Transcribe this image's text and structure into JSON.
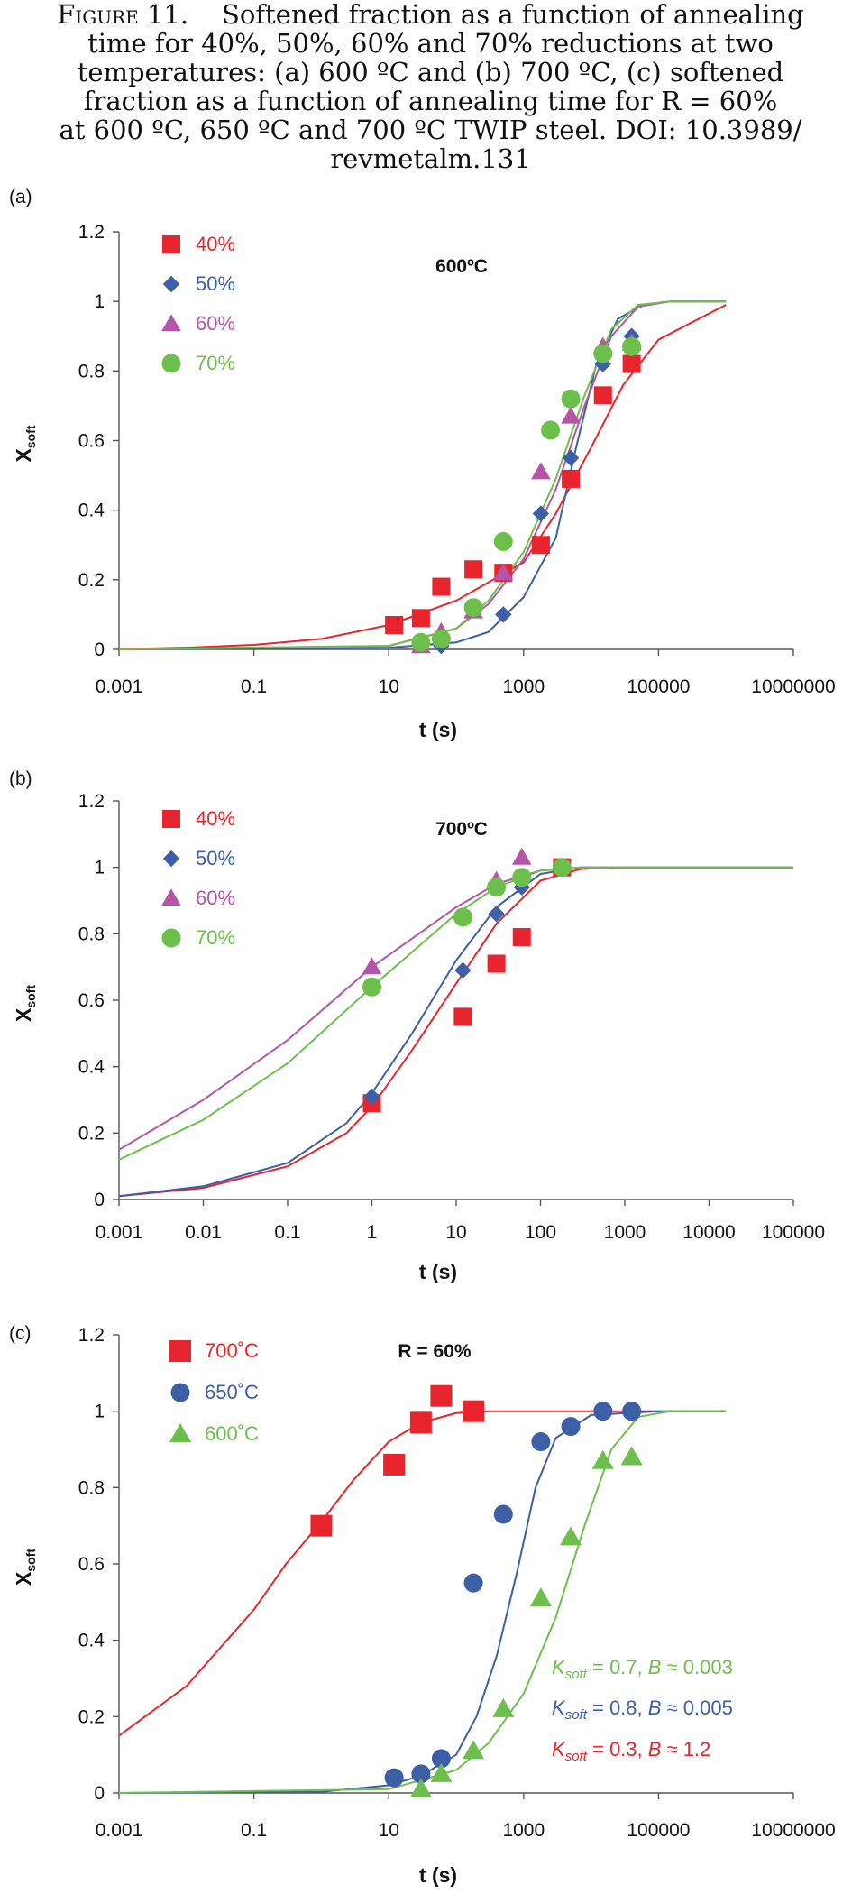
{
  "caption": {
    "lead": "Figure 11.",
    "lines": [
      "Softened fraction as a function of annealing",
      "time for 40%, 50%, 60% and 70% reductions at two",
      "temperatures: (a) 600 ºC and (b) 700 ºC, (c) softened",
      "fraction as a function of annealing time for R = 60%",
      "at 600 ºC, 650 ºC and 700 ºC TWIP steel.  DOI: 10.3989/",
      "revmetalm.131"
    ]
  },
  "chart_data": [
    {
      "panel_label": "(a)",
      "type": "scatter",
      "title": "600ºC",
      "xlabel": "t (s)",
      "ylabel": "X",
      "ylabel_sub": "soft",
      "xscale": "log",
      "xlim": [
        0.001,
        10000000
      ],
      "ylim": [
        0,
        1.2
      ],
      "xticks": [
        0.001,
        0.1,
        10,
        1000,
        100000,
        10000000
      ],
      "xticklabels": [
        "0.001",
        "0.1",
        "10",
        "1000",
        "100000",
        "10000000"
      ],
      "yticks": [
        0,
        0.2,
        0.4,
        0.6,
        0.8,
        1,
        1.2
      ],
      "yticklabels": [
        "0",
        "0.2",
        "0.4",
        "0.6",
        "0.8",
        "1",
        "1.2"
      ],
      "grid": false,
      "legend_position": "top-left",
      "series": [
        {
          "name": "40%",
          "marker": "square",
          "color": "#e8242c",
          "x": [
            12,
            30,
            60,
            180,
            500,
            1800,
            5000,
            15000,
            40000
          ],
          "y": [
            0.07,
            0.09,
            0.18,
            0.23,
            0.22,
            0.3,
            0.49,
            0.73,
            0.82
          ],
          "fit_x": [
            0.001,
            0.01,
            0.1,
            1,
            10,
            100,
            1000,
            3000,
            10000,
            30000,
            100000,
            1000000
          ],
          "fit_y": [
            0.001,
            0.005,
            0.013,
            0.03,
            0.07,
            0.14,
            0.25,
            0.39,
            0.58,
            0.76,
            0.89,
            0.99
          ]
        },
        {
          "name": "50%",
          "marker": "diamond",
          "color": "#3c5fa6",
          "x": [
            60,
            500,
            1800,
            5000,
            15000,
            40000
          ],
          "y": [
            0.01,
            0.1,
            0.39,
            0.55,
            0.82,
            0.9
          ],
          "fit_x": [
            0.001,
            10,
            100,
            300,
            1000,
            3000,
            6000,
            12000,
            25000,
            60000,
            150000,
            1000000
          ],
          "fit_y": [
            0,
            0.005,
            0.02,
            0.05,
            0.15,
            0.32,
            0.58,
            0.82,
            0.95,
            0.99,
            1,
            1
          ]
        },
        {
          "name": "60%",
          "marker": "triangle",
          "color": "#b555a8",
          "x": [
            30,
            60,
            180,
            500,
            1800,
            5000,
            15000,
            40000
          ],
          "y": [
            0.01,
            0.05,
            0.11,
            0.22,
            0.51,
            0.67,
            0.87,
            0.88
          ],
          "fit_x": [
            0.001,
            10,
            100,
            300,
            1000,
            3000,
            8000,
            20000,
            50000,
            150000,
            1000000
          ],
          "fit_y": [
            0,
            0.01,
            0.06,
            0.13,
            0.26,
            0.46,
            0.7,
            0.9,
            0.985,
            1,
            1
          ]
        },
        {
          "name": "70%",
          "marker": "circle",
          "color": "#6dbf4b",
          "x": [
            30,
            60,
            180,
            500,
            2500,
            5000,
            15000,
            40000
          ],
          "y": [
            0.02,
            0.03,
            0.12,
            0.31,
            0.63,
            0.72,
            0.85,
            0.87
          ],
          "fit_x": [
            0.001,
            10,
            100,
            300,
            1000,
            3000,
            8000,
            20000,
            50000,
            150000,
            1000000
          ],
          "fit_y": [
            0,
            0.01,
            0.06,
            0.14,
            0.28,
            0.49,
            0.73,
            0.92,
            0.99,
            1,
            1
          ]
        }
      ]
    },
    {
      "panel_label": "(b)",
      "type": "scatter",
      "title": "700ºC",
      "xlabel": "t (s)",
      "ylabel": "X",
      "ylabel_sub": "soft",
      "xscale": "log",
      "xlim": [
        0.001,
        100000
      ],
      "ylim": [
        0,
        1.2
      ],
      "xticks": [
        0.001,
        0.01,
        0.1,
        1,
        10,
        100,
        1000,
        10000,
        100000
      ],
      "xticklabels": [
        "0.001",
        "0.01",
        "0.1",
        "1",
        "10",
        "100",
        "1000",
        "10000",
        "100000"
      ],
      "yticks": [
        0,
        0.2,
        0.4,
        0.6,
        0.8,
        1,
        1.2
      ],
      "yticklabels": [
        "0",
        "0.2",
        "0.4",
        "0.6",
        "0.8",
        "1",
        "1.2"
      ],
      "grid": false,
      "legend_position": "top-left",
      "series": [
        {
          "name": "40%",
          "marker": "square",
          "color": "#e8242c",
          "x": [
            1,
            12,
            30,
            60,
            180
          ],
          "y": [
            0.29,
            0.55,
            0.71,
            0.79,
            1.0
          ],
          "fit_x": [
            0.001,
            0.01,
            0.1,
            0.5,
            1,
            3,
            10,
            30,
            100,
            300,
            1000,
            100000
          ],
          "fit_y": [
            0.01,
            0.035,
            0.1,
            0.2,
            0.28,
            0.45,
            0.65,
            0.83,
            0.96,
            0.995,
            1,
            1
          ]
        },
        {
          "name": "50%",
          "marker": "diamond",
          "color": "#3c5fa6",
          "x": [
            1,
            12,
            30,
            60
          ],
          "y": [
            0.31,
            0.69,
            0.86,
            0.94
          ],
          "fit_x": [
            0.001,
            0.01,
            0.1,
            0.5,
            1,
            3,
            10,
            30,
            100,
            300,
            1000,
            100000
          ],
          "fit_y": [
            0.01,
            0.04,
            0.11,
            0.23,
            0.32,
            0.5,
            0.72,
            0.88,
            0.98,
            1,
            1,
            1
          ]
        },
        {
          "name": "60%",
          "marker": "triangle",
          "color": "#b555a8",
          "x": [
            1,
            30,
            60
          ],
          "y": [
            0.7,
            0.96,
            1.03
          ],
          "fit_x": [
            0.001,
            0.01,
            0.1,
            1,
            10,
            30,
            100,
            300,
            1000,
            100000
          ],
          "fit_y": [
            0.15,
            0.3,
            0.48,
            0.7,
            0.88,
            0.95,
            0.99,
            1,
            1,
            1
          ]
        },
        {
          "name": "70%",
          "marker": "circle",
          "color": "#6dbf4b",
          "x": [
            1,
            12,
            30,
            60,
            180
          ],
          "y": [
            0.64,
            0.85,
            0.94,
            0.97,
            1.0
          ],
          "fit_x": [
            0.001,
            0.01,
            0.1,
            1,
            10,
            30,
            100,
            300,
            1000,
            100000
          ],
          "fit_y": [
            0.12,
            0.24,
            0.41,
            0.64,
            0.86,
            0.94,
            0.99,
            1,
            1,
            1
          ]
        }
      ]
    },
    {
      "panel_label": "(c)",
      "type": "scatter",
      "title": "R = 60%",
      "xlabel": "t (s)",
      "ylabel": "X",
      "ylabel_sub": "soft",
      "xscale": "log",
      "xlim": [
        0.001,
        10000000
      ],
      "ylim": [
        0,
        1.2
      ],
      "xticks": [
        0.001,
        0.1,
        10,
        1000,
        100000,
        10000000
      ],
      "xticklabels": [
        "0.001",
        "0.1",
        "10",
        "1000",
        "100000",
        "10000000"
      ],
      "yticks": [
        0,
        0.2,
        0.4,
        0.6,
        0.8,
        1,
        1.2
      ],
      "yticklabels": [
        "0",
        "0.2",
        "0.4",
        "0.6",
        "0.8",
        "1",
        "1.2"
      ],
      "grid": false,
      "legend_position": "top-left",
      "series": [
        {
          "name": "700˚C",
          "marker": "square",
          "color": "#e8242c",
          "x": [
            1,
            12,
            30,
            60,
            180
          ],
          "y": [
            0.7,
            0.86,
            0.97,
            1.04,
            1.0
          ],
          "fit_x": [
            0.001,
            0.01,
            0.1,
            0.3,
            1,
            3,
            10,
            30,
            100,
            300,
            1000,
            100000,
            1000000
          ],
          "fit_y": [
            0.15,
            0.28,
            0.48,
            0.6,
            0.71,
            0.82,
            0.92,
            0.97,
            0.995,
            1,
            1,
            1,
            1
          ]
        },
        {
          "name": "650˚C",
          "marker": "circle",
          "color": "#3c5fa6",
          "x": [
            12,
            30,
            60,
            180,
            500,
            1800,
            5000,
            15000,
            40000
          ],
          "y": [
            0.04,
            0.05,
            0.09,
            0.55,
            0.73,
            0.92,
            0.96,
            1.0,
            1.0
          ],
          "fit_x": [
            0.001,
            1,
            10,
            30,
            100,
            200,
            400,
            800,
            1500,
            3000,
            10000,
            100000,
            1000000
          ],
          "fit_y": [
            0,
            0.003,
            0.02,
            0.045,
            0.1,
            0.2,
            0.36,
            0.58,
            0.8,
            0.93,
            0.99,
            1,
            1
          ]
        },
        {
          "name": "600˚C",
          "marker": "triangle",
          "color": "#6dbf4b",
          "x": [
            30,
            60,
            180,
            500,
            1800,
            5000,
            15000,
            40000
          ],
          "y": [
            0.01,
            0.05,
            0.11,
            0.22,
            0.51,
            0.67,
            0.87,
            0.88
          ],
          "fit_x": [
            0.001,
            10,
            100,
            300,
            1000,
            3000,
            8000,
            20000,
            50000,
            150000,
            1000000
          ],
          "fit_y": [
            0,
            0.01,
            0.06,
            0.13,
            0.26,
            0.46,
            0.7,
            0.9,
            0.985,
            1,
            1
          ]
        }
      ],
      "annotations": [
        {
          "color": "#6dbf4b",
          "k": "0.7",
          "b": "0.003"
        },
        {
          "color": "#3c5fa6",
          "k": "0.8",
          "b": "0.005"
        },
        {
          "color": "#e8242c",
          "k": "0.3",
          "b": "1.2"
        }
      ],
      "annotation_parts": {
        "k_symbol": "K",
        "k_sub": "soft",
        "b_symbol": "B",
        "approx": "≈"
      }
    }
  ]
}
